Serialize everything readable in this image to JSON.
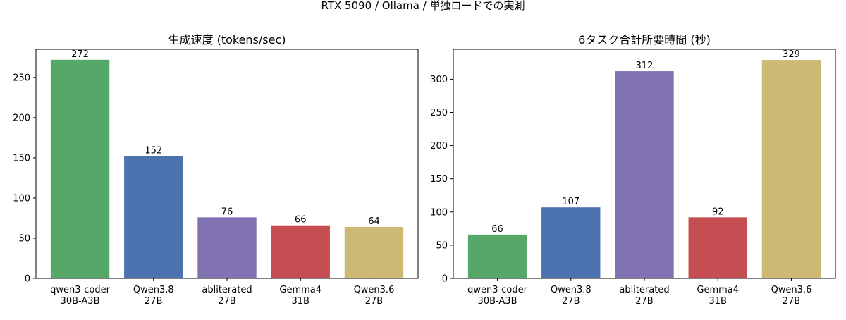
{
  "figure_title": "RTX 5090 / Ollama / 単独ロードでの実測",
  "chart_data": [
    {
      "type": "bar",
      "title": "生成速度 (tokens/sec)",
      "categories": [
        [
          "qwen3-coder",
          "30B-A3B"
        ],
        [
          "Qwen3.8",
          "27B"
        ],
        [
          "abliterated",
          "27B"
        ],
        [
          "Gemma4",
          "31B"
        ],
        [
          "Qwen3.6",
          "27B"
        ]
      ],
      "values": [
        272,
        152,
        76,
        66,
        64
      ],
      "value_labels": [
        "272",
        "152",
        "76",
        "66",
        "64"
      ],
      "colors": [
        "#55a868",
        "#4c72b0",
        "#8172b2",
        "#c44e52",
        "#ccb974"
      ],
      "ylim": [
        0,
        285
      ],
      "yticks": [
        0,
        50,
        100,
        150,
        200,
        250
      ],
      "grid": false,
      "xlabel": "",
      "ylabel": ""
    },
    {
      "type": "bar",
      "title": "6タスク合計所要時間 (秒)",
      "categories": [
        [
          "qwen3-coder",
          "30B-A3B"
        ],
        [
          "Qwen3.8",
          "27B"
        ],
        [
          "abliterated",
          "27B"
        ],
        [
          "Gemma4",
          "31B"
        ],
        [
          "Qwen3.6",
          "27B"
        ]
      ],
      "values": [
        66,
        107,
        312,
        92,
        329
      ],
      "value_labels": [
        "66",
        "107",
        "312",
        "92",
        "329"
      ],
      "colors": [
        "#55a868",
        "#4c72b0",
        "#8172b2",
        "#c44e52",
        "#ccb974"
      ],
      "ylim": [
        0,
        345
      ],
      "yticks": [
        0,
        50,
        100,
        150,
        200,
        250,
        300
      ],
      "grid": false,
      "xlabel": "",
      "ylabel": ""
    }
  ]
}
